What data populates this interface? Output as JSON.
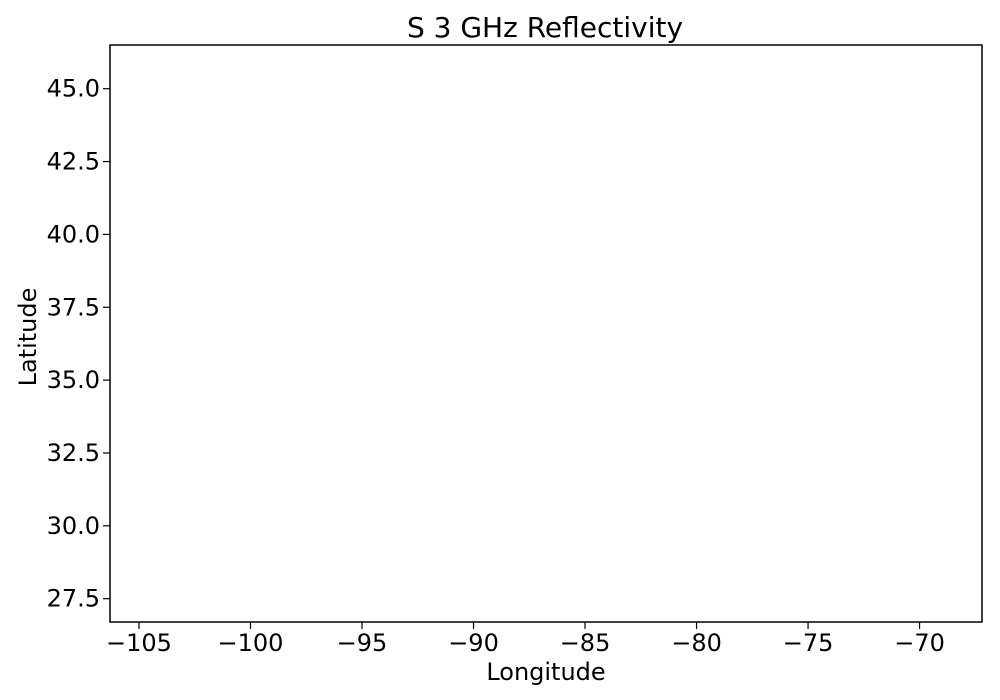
{
  "chart_data": {
    "type": "scatter",
    "title": "S 3 GHz Reflectivity",
    "xlabel": "Longitude",
    "ylabel": "Latitude",
    "xlim": [
      -106.3,
      -67.2
    ],
    "ylim": [
      26.7,
      46.5
    ],
    "xticks": [
      -105,
      -100,
      -95,
      -90,
      -85,
      -80,
      -75,
      -70
    ],
    "yticks": [
      27.5,
      30.0,
      32.5,
      35.0,
      37.5,
      40.0,
      42.5,
      45.0
    ],
    "xtick_labels": [
      "−105",
      "−100",
      "−95",
      "−90",
      "−85",
      "−80",
      "−75",
      "−70"
    ],
    "ytick_labels": [
      "27.5",
      "30.0",
      "32.5",
      "35.0",
      "37.5",
      "40.0",
      "42.5",
      "45.0"
    ],
    "series": [],
    "grid": false,
    "colors": {
      "axes": "#000000",
      "background": "#ffffff"
    }
  }
}
